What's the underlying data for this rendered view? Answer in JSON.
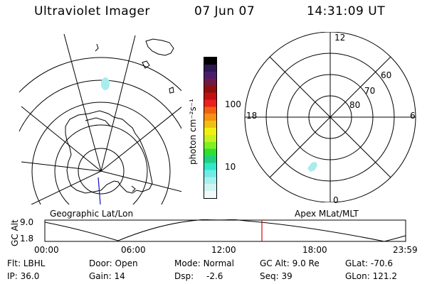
{
  "header": {
    "instrument": "Ultraviolet Imager",
    "date": "07 Jun 07",
    "time": "14:31:09 UT"
  },
  "left_panel": {
    "caption": "Geographic Lat/Lon"
  },
  "colorbar": {
    "unit_label": "photon cm⁻²s⁻¹",
    "ticks": [
      "100",
      "10"
    ],
    "colors": [
      "#000000",
      "#2d1850",
      "#4a1e6e",
      "#6e1a44",
      "#8c1010",
      "#c01010",
      "#e82020",
      "#f06010",
      "#f89010",
      "#f0c010",
      "#f0f010",
      "#c8f020",
      "#80f020",
      "#30e030",
      "#20d080",
      "#30e8c8",
      "#70ece8",
      "#a8f0ee",
      "#d0f4f2",
      "#f0fafa"
    ]
  },
  "right_panel": {
    "caption": "Apex MLat/MLT",
    "mlt_labels": {
      "top": "12",
      "left": "18",
      "right": "6",
      "bottom": "0"
    },
    "lat_labels": [
      "60",
      "70",
      "80"
    ]
  },
  "altitude_plot": {
    "ylabel": "GC Alt",
    "yticks": [
      "9.0",
      "1.8"
    ],
    "xticks": [
      "00:00",
      "06:00",
      "12:00",
      "18:00",
      "23:59"
    ],
    "marker_color": "#e00000",
    "marker_time": "14:31"
  },
  "info": {
    "rows": [
      [
        {
          "label": "Flt:",
          "value": "LBHL"
        },
        {
          "label": "Door:",
          "value": "Open"
        },
        {
          "label": "Mode:",
          "value": "Normal"
        },
        {
          "label": "GC Alt:",
          "value": "9.0 Re"
        },
        {
          "label": "GLat:",
          "value": "-70.6"
        }
      ],
      [
        {
          "label": "IP:",
          "value": "36.0"
        },
        {
          "label": "Gain:",
          "value": "14"
        },
        {
          "label": "Dsp:",
          "value": "-2.6"
        },
        {
          "label": "Seq:",
          "value": "39"
        },
        {
          "label": "GLon:",
          "value": "121.2"
        }
      ]
    ]
  }
}
